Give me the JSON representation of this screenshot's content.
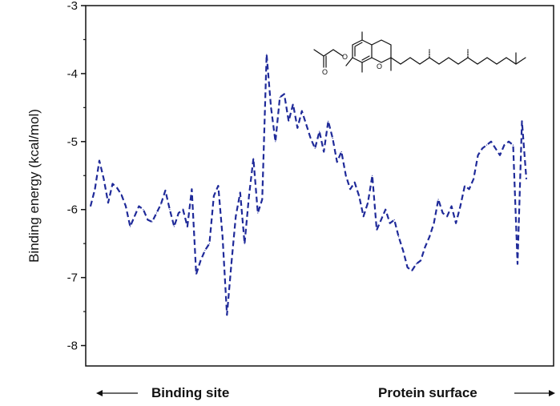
{
  "chart_data": {
    "type": "line",
    "title": "",
    "xlabel": "",
    "ylabel": "Binding energy (kcal/mol)",
    "ylim": [
      -8.3,
      -3
    ],
    "yticks": [
      -3,
      -4,
      -5,
      -6,
      -7,
      -8
    ],
    "grid": false,
    "line_style": "dashed",
    "series": [
      {
        "color": "#1f2a99",
        "values": [
          -5.95,
          -5.7,
          -5.28,
          -5.55,
          -5.9,
          -5.62,
          -5.68,
          -5.78,
          -5.95,
          -6.25,
          -6.1,
          -5.95,
          -6.0,
          -6.15,
          -6.18,
          -6.05,
          -5.92,
          -5.72,
          -6.0,
          -6.25,
          -6.05,
          -6.0,
          -6.25,
          -5.7,
          -6.95,
          -6.75,
          -6.6,
          -6.5,
          -5.8,
          -5.65,
          -6.4,
          -7.55,
          -6.8,
          -6.1,
          -5.75,
          -6.5,
          -5.8,
          -5.25,
          -6.05,
          -5.85,
          -3.72,
          -4.5,
          -5.0,
          -4.35,
          -4.3,
          -4.7,
          -4.45,
          -4.8,
          -4.55,
          -4.75,
          -4.95,
          -5.1,
          -4.85,
          -5.15,
          -4.7,
          -4.95,
          -5.3,
          -5.15,
          -5.5,
          -5.7,
          -5.6,
          -5.8,
          -6.1,
          -5.9,
          -5.5,
          -6.3,
          -6.15,
          -6.0,
          -6.2,
          -6.15,
          -6.4,
          -6.6,
          -6.85,
          -6.9,
          -6.8,
          -6.75,
          -6.55,
          -6.4,
          -6.2,
          -5.85,
          -6.05,
          -6.1,
          -5.95,
          -6.2,
          -5.95,
          -5.65,
          -5.7,
          -5.55,
          -5.2,
          -5.1,
          -5.05,
          -5.0,
          -5.1,
          -5.2,
          -5.05,
          -5.0,
          -5.05,
          -6.8,
          -4.7,
          -5.55
        ]
      }
    ]
  },
  "annotations": {
    "left_caption": "Binding site",
    "right_caption": "Protein surface"
  },
  "molecule_icon": "tocopheryl-acetate-structure-icon"
}
